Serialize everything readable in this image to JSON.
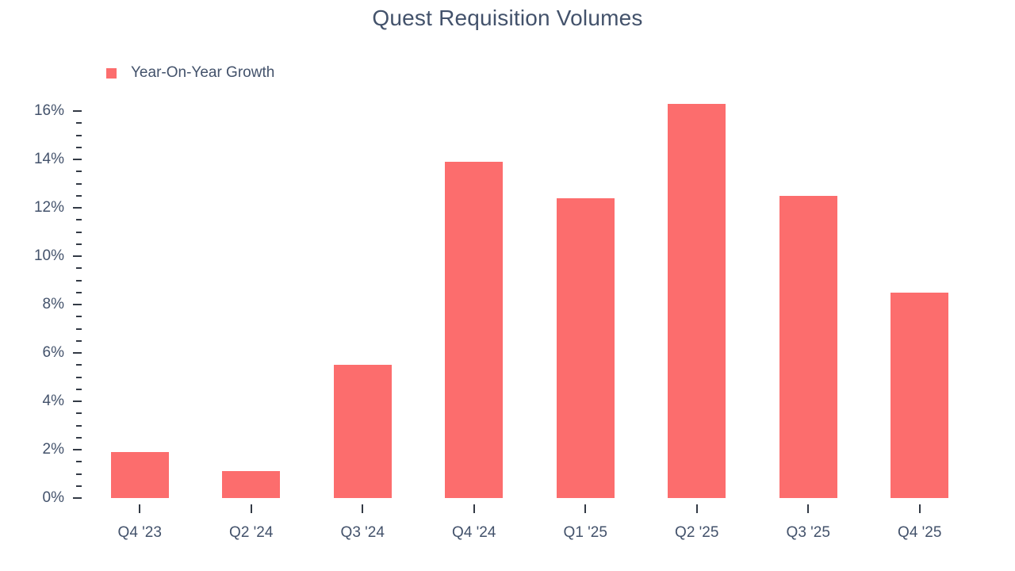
{
  "chart_data": {
    "type": "bar",
    "title": "Quest Requisition Volumes",
    "legend": [
      {
        "label": "Year-On-Year Growth",
        "color": "#fc6d6d"
      }
    ],
    "legend_position": "top-left",
    "categories": [
      "Q4 '23",
      "Q2 '24",
      "Q3 '24",
      "Q4 '24",
      "Q1 '25",
      "Q2 '25",
      "Q3 '25",
      "Q4 '25"
    ],
    "values": [
      1.9,
      1.1,
      5.5,
      13.9,
      12.4,
      16.3,
      12.5,
      8.5
    ],
    "unit": "%",
    "xlabel": "",
    "ylabel": "",
    "ylim": [
      0,
      16
    ],
    "y_major_ticks": [
      0,
      2,
      4,
      6,
      8,
      10,
      12,
      14,
      16
    ],
    "y_minor_step": 0.5,
    "y_tick_label_suffix": "%",
    "grid": false,
    "bar_color": "#fc6d6d",
    "text_color": "#43526b"
  }
}
